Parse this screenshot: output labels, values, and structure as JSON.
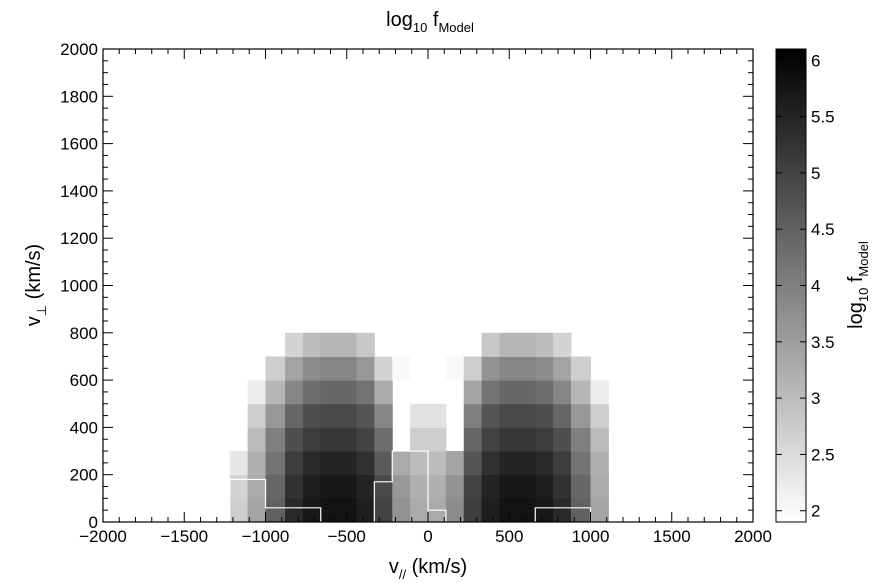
{
  "chart_data": {
    "type": "heatmap",
    "title": {
      "main": "log",
      "sub1": "10",
      "mid": " f",
      "sub2": "Model"
    },
    "xlabel": {
      "main": "v",
      "sub": "//",
      "rest": " (km/s)"
    },
    "ylabel": {
      "main": "v",
      "sub": "⊥",
      "rest": " (km/s)"
    },
    "colorbar_label": {
      "main": "log",
      "sub1": "10",
      "mid": " f",
      "sub2": "Model"
    },
    "xlim": [
      -2000,
      2000
    ],
    "ylim": [
      0,
      2000
    ],
    "x_ticks": [
      -2000,
      -1500,
      -1000,
      -500,
      0,
      500,
      1000,
      1500,
      2000
    ],
    "x_tick_labels": [
      "−2000",
      "−1500",
      "−1000",
      "−500",
      "0",
      "500",
      "1000",
      "1500",
      "2000"
    ],
    "y_ticks": [
      0,
      200,
      400,
      600,
      800,
      1000,
      1200,
      1400,
      1600,
      1800,
      2000
    ],
    "y_tick_labels": [
      "0",
      "200",
      "400",
      "600",
      "800",
      "1000",
      "1200",
      "1400",
      "1600",
      "1800",
      "2000"
    ],
    "colorbar_range": [
      1.9,
      6.1
    ],
    "colorbar_ticks": [
      2,
      2.5,
      3,
      3.5,
      4,
      4.5,
      5,
      5.5,
      6
    ],
    "colorbar_tick_labels": [
      "2",
      "2.5",
      "3",
      "3.5",
      "4",
      "4.5",
      "5",
      "5.5",
      "6"
    ],
    "colormap": {
      "low": "#ffffff",
      "high": "#000000"
    },
    "bin_x_edges": [
      -1220,
      -1110,
      -1000,
      -880,
      -770,
      -660,
      -550,
      -440,
      -330,
      -220,
      -110,
      0,
      110,
      220,
      330,
      440,
      550,
      660,
      770,
      880,
      1000,
      1110
    ],
    "bin_y_edges": [
      0,
      100,
      200,
      300,
      400,
      500,
      600,
      700,
      800,
      900
    ],
    "values_by_row_bottom_to_top": [
      [
        2.7,
        3.4,
        4.5,
        5.4,
        5.7,
        5.8,
        5.8,
        5.6,
        5.0,
        3.7,
        3.3,
        3.3,
        3.8,
        5.1,
        5.6,
        5.8,
        5.8,
        5.7,
        5.4,
        4.5,
        3.4,
        2.7
      ],
      [
        2.6,
        3.3,
        4.4,
        5.3,
        5.6,
        5.7,
        5.7,
        5.5,
        4.9,
        3.6,
        3.2,
        3.2,
        3.7,
        5.0,
        5.5,
        5.7,
        5.7,
        5.6,
        5.3,
        4.4,
        3.3,
        2.6
      ],
      [
        2.3,
        3.2,
        4.2,
        5.1,
        5.4,
        5.5,
        5.5,
        5.3,
        4.6,
        3.3,
        3.0,
        3.0,
        3.4,
        4.7,
        5.3,
        5.5,
        5.5,
        5.4,
        5.1,
        4.2,
        3.2,
        2.3
      ],
      [
        null,
        3.0,
        4.0,
        4.8,
        5.1,
        5.2,
        5.2,
        5.0,
        4.3,
        null,
        2.7,
        2.7,
        null,
        4.4,
        5.0,
        5.2,
        5.2,
        5.1,
        4.8,
        4.0,
        3.0,
        null
      ],
      [
        null,
        2.7,
        3.6,
        4.4,
        4.8,
        4.9,
        4.9,
        4.7,
        3.9,
        null,
        2.4,
        2.4,
        null,
        4.0,
        4.7,
        4.9,
        4.9,
        4.8,
        4.4,
        3.6,
        2.7,
        null
      ],
      [
        null,
        2.2,
        3.1,
        3.9,
        4.3,
        4.4,
        4.4,
        4.2,
        3.3,
        null,
        null,
        null,
        null,
        3.4,
        4.2,
        4.4,
        4.4,
        4.3,
        3.9,
        3.1,
        2.2,
        null
      ],
      [
        null,
        null,
        2.7,
        3.4,
        3.8,
        3.9,
        3.9,
        3.6,
        2.6,
        2.0,
        null,
        null,
        2.0,
        2.7,
        3.7,
        3.9,
        3.9,
        3.8,
        3.4,
        2.7,
        null,
        null
      ],
      [
        null,
        null,
        null,
        2.6,
        3.0,
        3.1,
        3.1,
        2.8,
        null,
        null,
        null,
        null,
        null,
        null,
        2.8,
        3.1,
        3.1,
        3.0,
        2.6,
        null,
        null,
        null
      ],
      [
        null,
        null,
        null,
        null,
        null,
        null,
        null,
        null,
        null,
        null,
        null,
        null,
        null,
        null,
        null,
        null,
        null,
        null,
        null,
        null,
        null,
        null
      ]
    ],
    "contours": [
      [
        [
          -1220,
          0
        ],
        [
          -1220,
          180
        ],
        [
          -1000,
          180
        ],
        [
          -1000,
          60
        ],
        [
          -880,
          60
        ],
        [
          -770,
          60
        ],
        [
          -660,
          60
        ],
        [
          -660,
          0
        ]
      ],
      [
        [
          -330,
          0
        ],
        [
          -330,
          170
        ],
        [
          -220,
          170
        ],
        [
          -220,
          300
        ],
        [
          0,
          300
        ],
        [
          0,
          50
        ],
        [
          110,
          50
        ],
        [
          110,
          0
        ]
      ],
      [
        [
          660,
          0
        ],
        [
          660,
          60
        ],
        [
          1000,
          60
        ],
        [
          1000,
          0
        ]
      ]
    ]
  }
}
